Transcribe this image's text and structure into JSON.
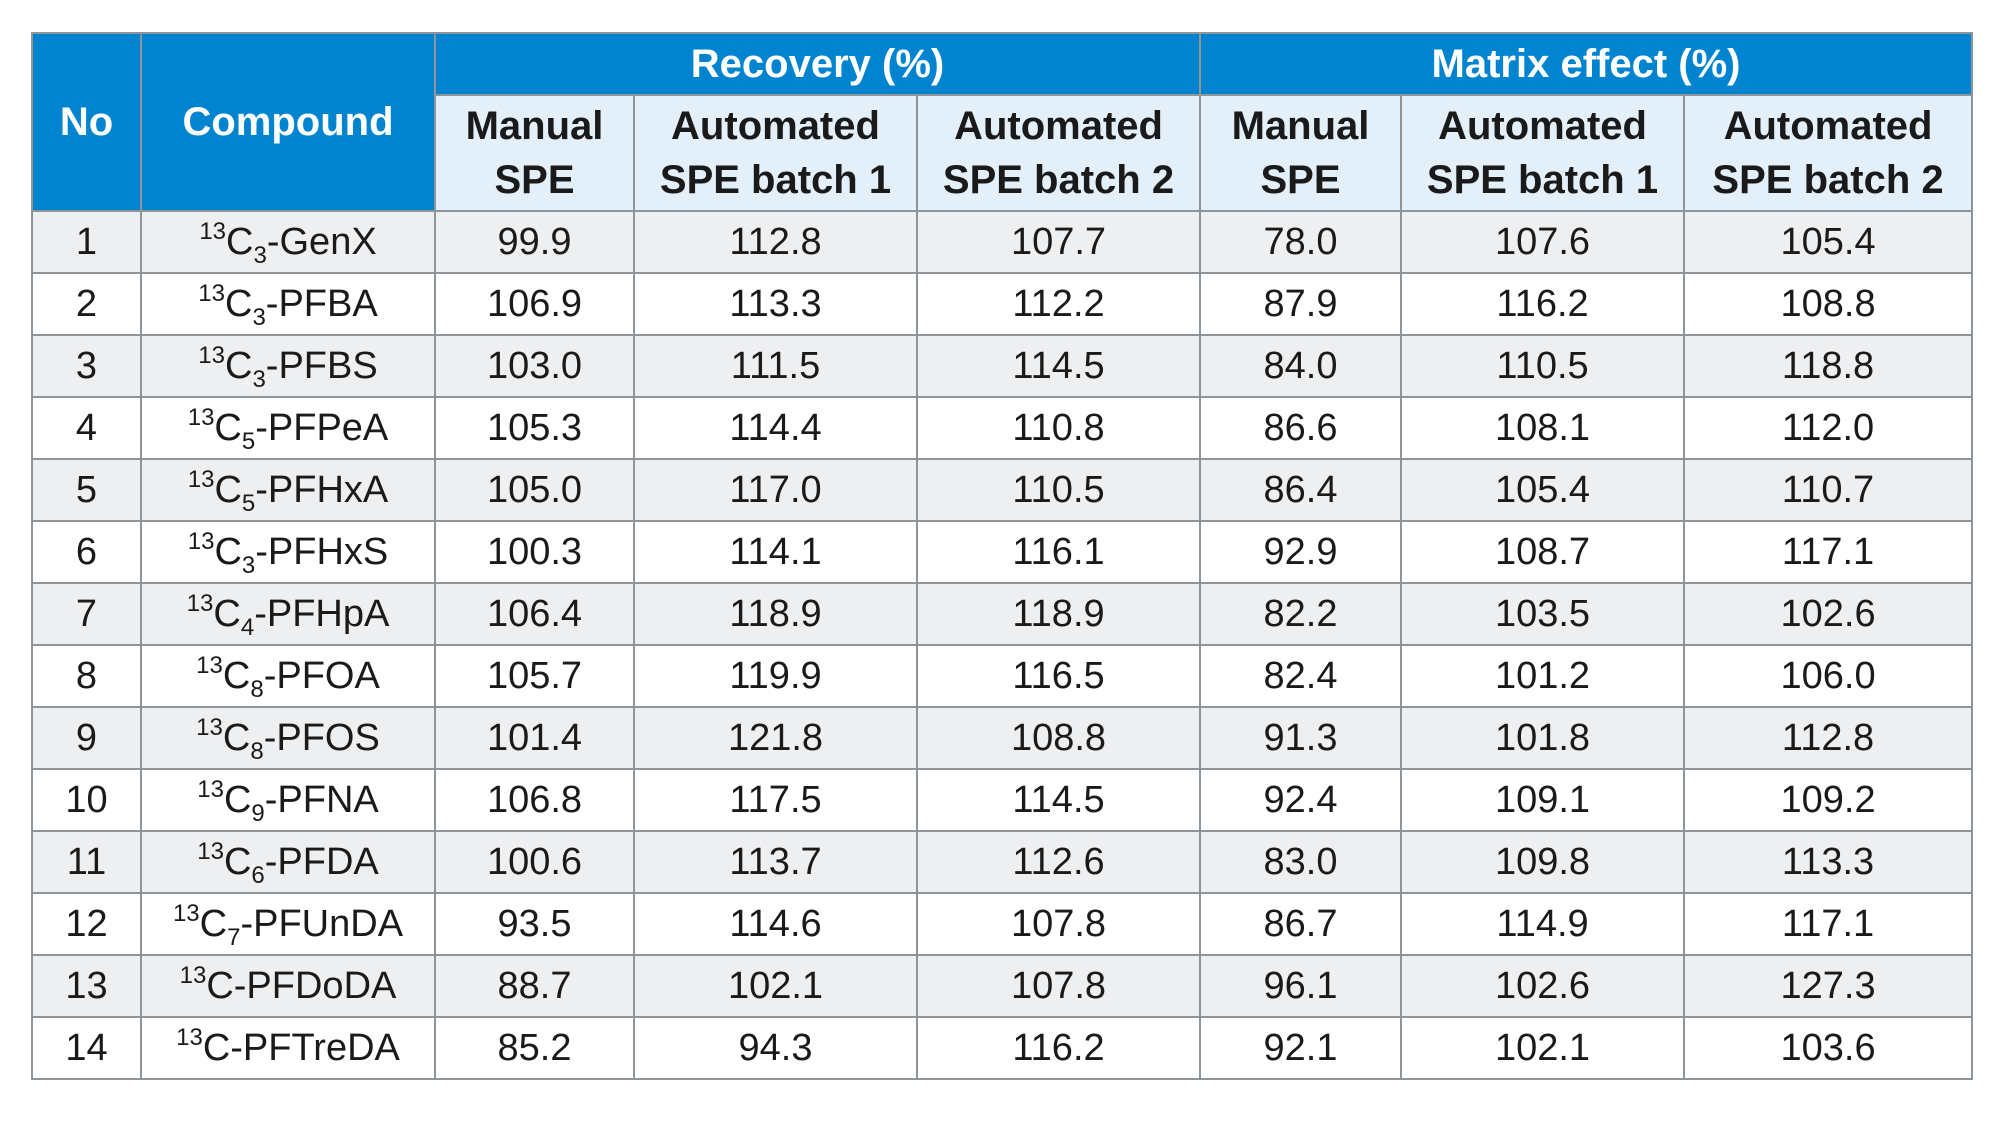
{
  "table": {
    "headers": {
      "no": "No",
      "compound": "Compound",
      "recovery": "Recovery (%)",
      "matrix": "Matrix effect (%)",
      "sub": [
        [
          "Manual",
          "SPE"
        ],
        [
          "Automated",
          "SPE batch 1"
        ],
        [
          "Automated",
          "SPE batch 2"
        ],
        [
          "Manual",
          "SPE"
        ],
        [
          "Automated",
          "SPE batch 1"
        ],
        [
          "Automated",
          "SPE batch 2"
        ]
      ]
    },
    "rows": [
      {
        "no": "1",
        "sup": "13",
        "base": "C",
        "sub": "3",
        "rest": "-GenX",
        "values": [
          "99.9",
          "112.8",
          "107.7",
          "78.0",
          "107.6",
          "105.4"
        ]
      },
      {
        "no": "2",
        "sup": "13",
        "base": "C",
        "sub": "3",
        "rest": "-PFBA",
        "values": [
          "106.9",
          "113.3",
          "112.2",
          "87.9",
          "116.2",
          "108.8"
        ]
      },
      {
        "no": "3",
        "sup": "13",
        "base": "C",
        "sub": "3",
        "rest": "-PFBS",
        "values": [
          "103.0",
          "111.5",
          "114.5",
          "84.0",
          "110.5",
          "118.8"
        ]
      },
      {
        "no": "4",
        "sup": "13",
        "base": "C",
        "sub": "5",
        "rest": "-PFPeA",
        "values": [
          "105.3",
          "114.4",
          "110.8",
          "86.6",
          "108.1",
          "112.0"
        ]
      },
      {
        "no": "5",
        "sup": "13",
        "base": "C",
        "sub": "5",
        "rest": "-PFHxA",
        "values": [
          "105.0",
          "117.0",
          "110.5",
          "86.4",
          "105.4",
          "110.7"
        ]
      },
      {
        "no": "6",
        "sup": "13",
        "base": "C",
        "sub": "3",
        "rest": "-PFHxS",
        "values": [
          "100.3",
          "114.1",
          "116.1",
          "92.9",
          "108.7",
          "117.1"
        ]
      },
      {
        "no": "7",
        "sup": "13",
        "base": "C",
        "sub": "4",
        "rest": "-PFHpA",
        "values": [
          "106.4",
          "118.9",
          "118.9",
          "82.2",
          "103.5",
          "102.6"
        ]
      },
      {
        "no": "8",
        "sup": "13",
        "base": "C",
        "sub": "8",
        "rest": "-PFOA",
        "values": [
          "105.7",
          "119.9",
          "116.5",
          "82.4",
          "101.2",
          "106.0"
        ]
      },
      {
        "no": "9",
        "sup": "13",
        "base": "C",
        "sub": "8",
        "rest": "-PFOS",
        "values": [
          "101.4",
          "121.8",
          "108.8",
          "91.3",
          "101.8",
          "112.8"
        ]
      },
      {
        "no": "10",
        "sup": "13",
        "base": "C",
        "sub": "9",
        "rest": "-PFNA",
        "values": [
          "106.8",
          "117.5",
          "114.5",
          "92.4",
          "109.1",
          "109.2"
        ]
      },
      {
        "no": "11",
        "sup": "13",
        "base": "C",
        "sub": "6",
        "rest": "-PFDA",
        "values": [
          "100.6",
          "113.7",
          "112.6",
          "83.0",
          "109.8",
          "113.3"
        ]
      },
      {
        "no": "12",
        "sup": "13",
        "base": "C",
        "sub": "7",
        "rest": "-PFUnDA",
        "values": [
          "93.5",
          "114.6",
          "107.8",
          "86.7",
          "114.9",
          "117.1"
        ]
      },
      {
        "no": "13",
        "sup": "13",
        "base": "C",
        "sub": "",
        "rest": "-PFDoDA",
        "values": [
          "88.7",
          "102.1",
          "107.8",
          "96.1",
          "102.6",
          "127.3"
        ]
      },
      {
        "no": "14",
        "sup": "13",
        "base": "C",
        "sub": "",
        "rest": "-PFTreDA",
        "values": [
          "85.2",
          "94.3",
          "116.2",
          "92.1",
          "102.1",
          "103.6"
        ]
      }
    ]
  },
  "colors": {
    "header_blue": "#0084cf",
    "subheader_bg": "#e3eff9",
    "row_alt": "#eeeff1",
    "grid": "#8f9499"
  }
}
